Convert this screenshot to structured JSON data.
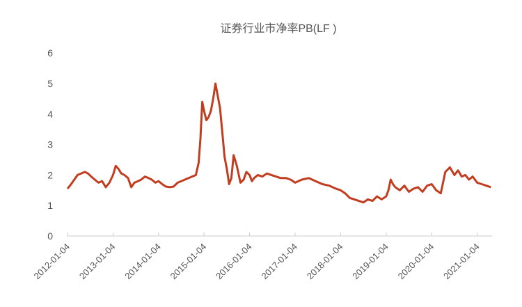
{
  "chart_data": {
    "type": "line",
    "title": "证券行业市净率PB(LF )",
    "xlabel": "",
    "ylabel": "",
    "ylim": [
      0,
      6
    ],
    "yticks": [
      0,
      1,
      2,
      3,
      4,
      5,
      6
    ],
    "xticks": [
      "2012-01-04",
      "2013-01-04",
      "2014-01-04",
      "2015-01-04",
      "2016-01-04",
      "2017-01-04",
      "2018-01-04",
      "2019-01-04",
      "2020-01-04",
      "2021-01-04"
    ],
    "grid": false,
    "legend": null,
    "line_color": "#c23d1f",
    "series": [
      {
        "name": "证券行业市净率PB(LF)",
        "x": [
          2012.0,
          2012.08,
          2012.15,
          2012.22,
          2012.3,
          2012.38,
          2012.45,
          2012.52,
          2012.6,
          2012.68,
          2012.76,
          2012.84,
          2012.92,
          2013.0,
          2013.06,
          2013.12,
          2013.18,
          2013.25,
          2013.33,
          2013.4,
          2013.47,
          2013.55,
          2013.62,
          2013.7,
          2013.78,
          2013.85,
          2013.93,
          2014.0,
          2014.08,
          2014.16,
          2014.25,
          2014.33,
          2014.42,
          2014.5,
          2014.58,
          2014.66,
          2014.74,
          2014.82,
          2014.88,
          2014.92,
          2014.96,
          2015.0,
          2015.05,
          2015.1,
          2015.15,
          2015.2,
          2015.25,
          2015.3,
          2015.35,
          2015.4,
          2015.45,
          2015.5,
          2015.55,
          2015.6,
          2015.65,
          2015.72,
          2015.8,
          2015.87,
          2015.93,
          2016.0,
          2016.05,
          2016.1,
          2016.18,
          2016.28,
          2016.38,
          2016.48,
          2016.58,
          2016.68,
          2016.8,
          2016.9,
          2017.0,
          2017.15,
          2017.3,
          2017.45,
          2017.6,
          2017.75,
          2017.9,
          2018.0,
          2018.1,
          2018.2,
          2018.3,
          2018.4,
          2018.5,
          2018.6,
          2018.7,
          2018.8,
          2018.9,
          2019.0,
          2019.05,
          2019.1,
          2019.15,
          2019.2,
          2019.3,
          2019.4,
          2019.5,
          2019.6,
          2019.7,
          2019.8,
          2019.9,
          2020.0,
          2020.1,
          2020.2,
          2020.3,
          2020.4,
          2020.5,
          2020.58,
          2020.66,
          2020.74,
          2020.82,
          2020.9,
          2021.0,
          2021.1,
          2021.2,
          2021.3
        ],
        "values": [
          1.55,
          1.7,
          1.85,
          2.0,
          2.05,
          2.1,
          2.05,
          1.95,
          1.85,
          1.75,
          1.8,
          1.6,
          1.75,
          2.0,
          2.3,
          2.2,
          2.05,
          2.0,
          1.9,
          1.6,
          1.75,
          1.8,
          1.85,
          1.95,
          1.9,
          1.85,
          1.75,
          1.8,
          1.7,
          1.62,
          1.6,
          1.62,
          1.75,
          1.8,
          1.85,
          1.9,
          1.95,
          2.0,
          2.4,
          3.2,
          4.4,
          4.1,
          3.8,
          3.9,
          4.1,
          4.5,
          5.0,
          4.6,
          4.2,
          3.4,
          2.6,
          2.2,
          1.7,
          1.9,
          2.65,
          2.3,
          1.75,
          1.85,
          2.1,
          2.0,
          1.8,
          1.9,
          2.0,
          1.95,
          2.05,
          2.0,
          1.95,
          1.9,
          1.9,
          1.85,
          1.75,
          1.85,
          1.9,
          1.8,
          1.7,
          1.65,
          1.55,
          1.5,
          1.4,
          1.25,
          1.2,
          1.15,
          1.1,
          1.2,
          1.15,
          1.3,
          1.2,
          1.3,
          1.5,
          1.85,
          1.7,
          1.6,
          1.5,
          1.65,
          1.45,
          1.55,
          1.6,
          1.45,
          1.65,
          1.7,
          1.5,
          1.4,
          2.1,
          2.25,
          2.0,
          2.15,
          1.95,
          2.0,
          1.85,
          1.95,
          1.75,
          1.7,
          1.65,
          1.6
        ]
      }
    ],
    "annotations": []
  }
}
